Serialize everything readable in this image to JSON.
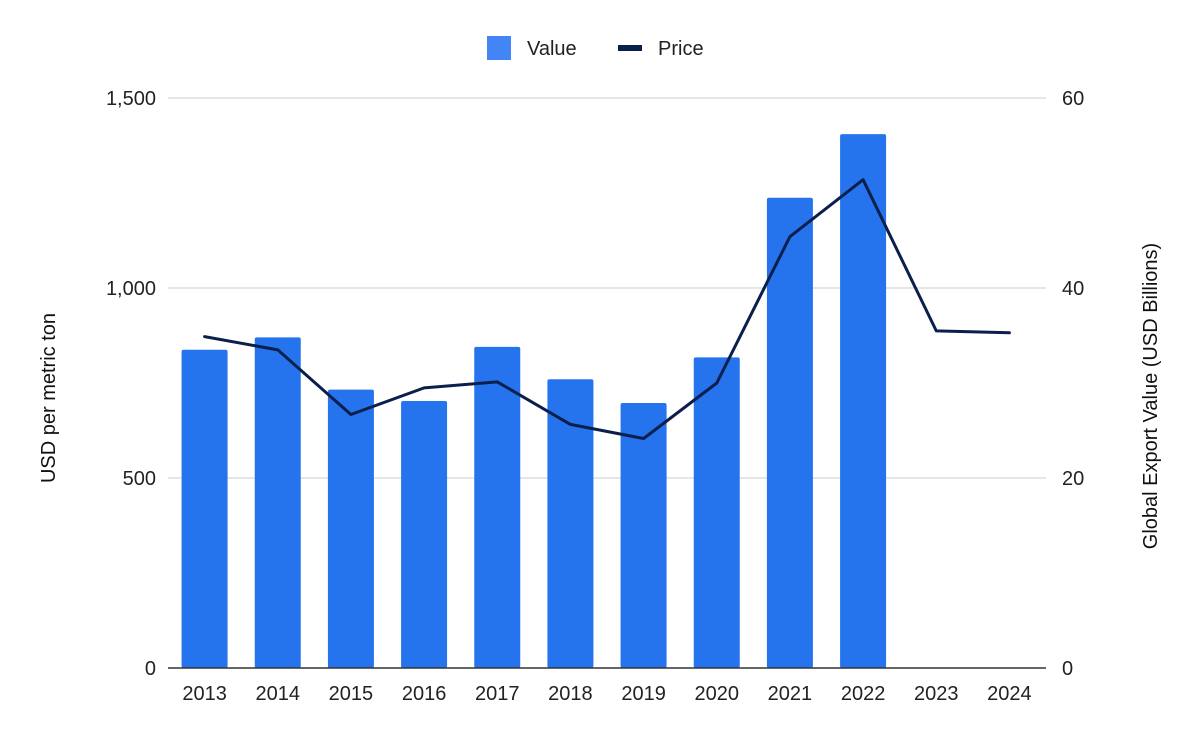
{
  "chart_data": {
    "type": "bar",
    "categories": [
      "2013",
      "2014",
      "2015",
      "2016",
      "2017",
      "2018",
      "2019",
      "2020",
      "2021",
      "2022",
      "2023",
      "2024"
    ],
    "series": [
      {
        "name": "Value",
        "type": "bar",
        "axis": "right",
        "color": "#2574EE",
        "values": [
          33.5,
          34.8,
          29.3,
          28.1,
          33.8,
          30.4,
          27.9,
          32.7,
          49.5,
          56.2,
          null,
          null
        ]
      },
      {
        "name": "Price",
        "type": "line",
        "axis": "left",
        "color": "#0B1F4D",
        "values": [
          872,
          837,
          667,
          737,
          753,
          641,
          604,
          750,
          1135,
          1285,
          887,
          882
        ]
      }
    ],
    "ylabel_left": "USD per metric ton",
    "ylabel_right": "Global Export Value (USD Billions)",
    "ylim_left": [
      0,
      1500
    ],
    "ylim_right": [
      0,
      60
    ],
    "yticks_left": [
      "0",
      "500",
      "1,000",
      "1,500"
    ],
    "yticks_right": [
      "0",
      "20",
      "40",
      "60"
    ],
    "grid": true,
    "legend": "top-center"
  }
}
